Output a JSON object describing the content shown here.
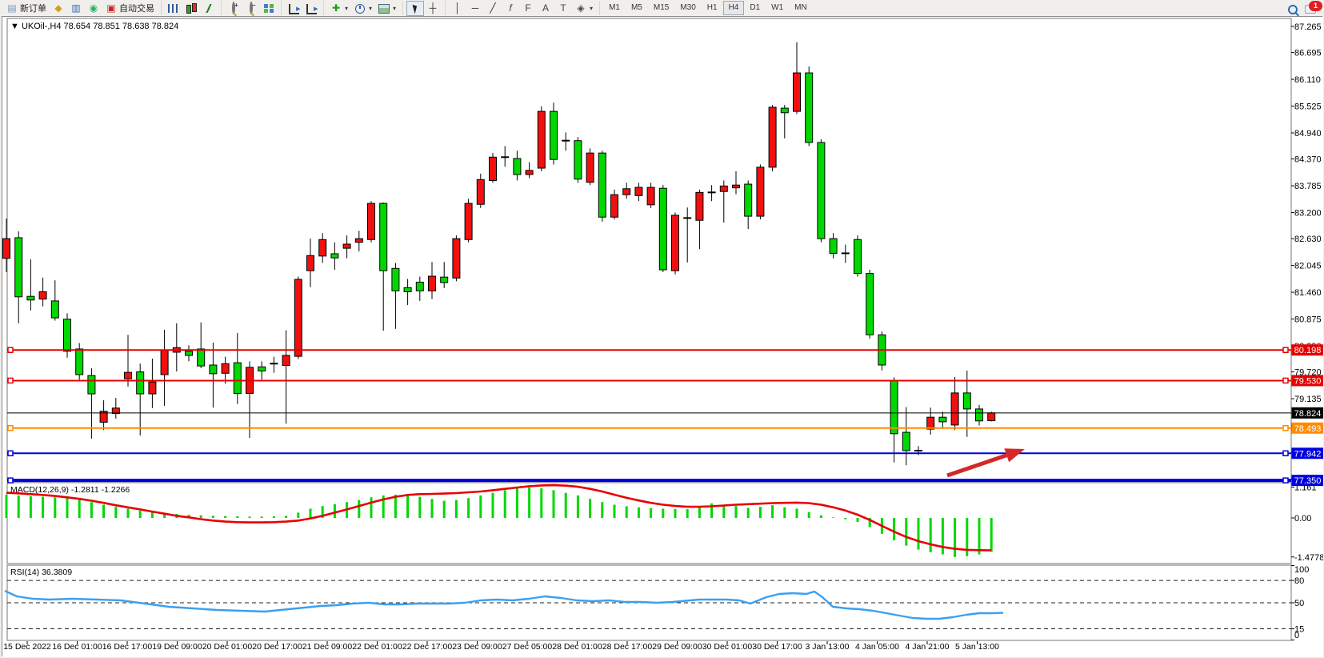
{
  "toolbar": {
    "new_order_label": "新订单",
    "autotrading_label": "自动交易",
    "groups": [
      {
        "items": [
          {
            "name": "new-order-button",
            "icon": "doc",
            "label_key": "new_order_label"
          },
          {
            "name": "chart-wizard-icon",
            "icon": "gold"
          },
          {
            "name": "market-watch-icon",
            "icon": "monitor"
          },
          {
            "name": "signals-icon",
            "icon": "signal"
          },
          {
            "name": "autotrading-button",
            "icon": "autotrade",
            "label_key": "autotrading_label"
          }
        ]
      },
      {
        "items": [
          {
            "name": "bar-chart-button",
            "icon": "bars"
          },
          {
            "name": "candlestick-chart-button",
            "icon": "candles"
          },
          {
            "name": "line-chart-button",
            "icon": "line"
          }
        ]
      },
      {
        "items": [
          {
            "name": "zoom-in-button",
            "icon": "zoom-in"
          },
          {
            "name": "zoom-out-button",
            "icon": "zoom-out"
          },
          {
            "name": "tile-windows-button",
            "icon": "tiles"
          }
        ]
      },
      {
        "items": [
          {
            "name": "auto-scroll-button",
            "icon": "axis"
          },
          {
            "name": "chart-shift-button",
            "icon": "axis"
          }
        ]
      },
      {
        "items": [
          {
            "name": "indicators-button",
            "icon": "plusdoc",
            "caret": true
          },
          {
            "name": "periods-button",
            "icon": "clock",
            "caret": true
          },
          {
            "name": "templates-button",
            "icon": "tpl",
            "caret": true
          }
        ]
      },
      {
        "items": [
          {
            "name": "cursor-button",
            "icon": "cursor",
            "active": true
          },
          {
            "name": "crosshair-button",
            "icon": "crosshair"
          }
        ]
      },
      {
        "items": [
          {
            "name": "vertical-line-button",
            "icon": "vline"
          },
          {
            "name": "horizontal-line-button",
            "icon": "hline"
          },
          {
            "name": "trendline-button",
            "icon": "tline"
          },
          {
            "name": "fibonacci-button",
            "icon": "fibo"
          },
          {
            "name": "fibo-fan-button",
            "icon": "fibo2"
          },
          {
            "name": "text-button",
            "icon": "textA"
          },
          {
            "name": "text-label-button",
            "icon": "textT"
          },
          {
            "name": "arrows-button",
            "icon": "arrows",
            "caret": true
          }
        ]
      }
    ],
    "timeframes": [
      "M1",
      "M5",
      "M15",
      "M30",
      "H1",
      "H4",
      "D1",
      "W1",
      "MN"
    ],
    "active_timeframe": "H4",
    "badge_count": "1"
  },
  "window": {
    "title": "UKOil-,H4",
    "ohlc_text": "78.654 78.851 78.638 78.824"
  },
  "price_axis": {
    "ticks": [
      87.265,
      86.695,
      86.11,
      85.525,
      84.94,
      84.37,
      83.785,
      83.2,
      82.63,
      82.045,
      81.46,
      80.875,
      80.29,
      79.72,
      79.135,
      78.55,
      77.965,
      77.38
    ]
  },
  "levels": [
    {
      "name": "resistance-line-1",
      "value": 80.198,
      "label": "80.198",
      "color": "#e80000",
      "width": 2,
      "badge": "#e80000"
    },
    {
      "name": "resistance-line-2",
      "value": 79.53,
      "label": "79.530",
      "color": "#e80000",
      "width": 2,
      "badge": "#e80000"
    },
    {
      "name": "current-price-line",
      "value": 78.824,
      "label": "78.824",
      "color": "#000000",
      "width": 1,
      "badge": "#000000"
    },
    {
      "name": "support-line-orange",
      "value": 78.493,
      "label": "78.493",
      "color": "#ff8c00",
      "width": 2,
      "badge": "#ff8c00"
    },
    {
      "name": "support-line-blue-1",
      "value": 77.942,
      "label": "77.942",
      "color": "#0000dd",
      "width": 2,
      "badge": "#0000dd"
    },
    {
      "name": "support-line-blue-2",
      "value": 77.35,
      "label": "77.350",
      "color": "#0000dd",
      "width": 4,
      "badge": "#0000dd"
    }
  ],
  "time_axis": {
    "labels": [
      "15 Dec 2022",
      "16 Dec 01:00",
      "16 Dec 17:00",
      "19 Dec 09:00",
      "20 Dec 01:00",
      "20 Dec 17:00",
      "21 Dec 09:00",
      "22 Dec 01:00",
      "22 Dec 17:00",
      "23 Dec 09:00",
      "27 Dec 05:00",
      "28 Dec 01:00",
      "28 Dec 17:00",
      "29 Dec 09:00",
      "30 Dec 01:00",
      "30 Dec 17:00",
      "3 Jan 13:00",
      "4 Jan 05:00",
      "4 Jan 21:00",
      "5 Jan 13:00"
    ]
  },
  "chart_data": {
    "type": "candlestick",
    "symbol": "UKOil-",
    "timeframe": "H4",
    "current_bar": {
      "open": 78.654,
      "high": 78.851,
      "low": 78.638,
      "close": 78.824
    },
    "up_color": "#f01010",
    "down_color": "#00d800",
    "note": "u = bullish (red, Chinese convention), d = bearish (green), j = doji. Fields: dir, bodyHigh, bodyLow, high, low",
    "ylim": [
      77.1,
      87.45
    ],
    "candles": [
      [
        "u",
        82.63,
        82.2,
        83.07,
        81.9
      ],
      [
        "d",
        82.65,
        81.36,
        82.79,
        80.78
      ],
      [
        "d",
        81.37,
        81.29,
        82.18,
        81.06
      ],
      [
        "u",
        81.47,
        81.31,
        81.78,
        81.15
      ],
      [
        "d",
        81.27,
        80.9,
        81.72,
        80.84
      ],
      [
        "d",
        80.87,
        80.17,
        81.0,
        80.03
      ],
      [
        "d",
        80.22,
        79.66,
        80.35,
        79.55
      ],
      [
        "d",
        79.64,
        79.24,
        79.8,
        78.26
      ],
      [
        "u",
        78.86,
        78.62,
        79.1,
        78.45
      ],
      [
        "u",
        78.93,
        78.81,
        79.15,
        78.7
      ],
      [
        "u",
        79.71,
        79.57,
        80.53,
        79.4
      ],
      [
        "d",
        79.72,
        79.24,
        79.9,
        78.33
      ],
      [
        "u",
        79.5,
        79.24,
        80.01,
        78.93
      ],
      [
        "u",
        80.2,
        79.66,
        80.64,
        78.98
      ],
      [
        "u",
        80.25,
        80.15,
        80.78,
        79.73
      ],
      [
        "d",
        80.17,
        80.08,
        80.3,
        79.95
      ],
      [
        "d",
        80.22,
        79.85,
        80.8,
        79.8
      ],
      [
        "d",
        79.87,
        79.68,
        80.36,
        78.94
      ],
      [
        "u",
        79.9,
        79.69,
        80.05,
        79.46
      ],
      [
        "d",
        79.92,
        79.25,
        80.57,
        79.02
      ],
      [
        "u",
        79.82,
        79.25,
        79.95,
        78.28
      ],
      [
        "d",
        79.83,
        79.74,
        79.95,
        79.55
      ],
      [
        "j",
        79.9,
        79.9,
        80.05,
        79.7
      ],
      [
        "u",
        80.08,
        79.86,
        80.63,
        78.59
      ],
      [
        "u",
        81.74,
        80.06,
        81.8,
        80.0
      ],
      [
        "u",
        82.26,
        81.93,
        82.63,
        81.57
      ],
      [
        "u",
        82.61,
        82.25,
        82.75,
        82.1
      ],
      [
        "d",
        82.3,
        82.21,
        82.55,
        81.95
      ],
      [
        "u",
        82.51,
        82.42,
        82.7,
        82.2
      ],
      [
        "u",
        82.63,
        82.55,
        82.8,
        82.35
      ],
      [
        "u",
        83.4,
        82.61,
        83.45,
        82.55
      ],
      [
        "d",
        83.4,
        81.93,
        83.42,
        80.62
      ],
      [
        "d",
        81.98,
        81.49,
        82.1,
        80.66
      ],
      [
        "d",
        81.56,
        81.47,
        81.75,
        81.18
      ],
      [
        "d",
        81.68,
        81.49,
        81.8,
        81.27
      ],
      [
        "u",
        81.81,
        81.49,
        82.12,
        81.31
      ],
      [
        "d",
        81.79,
        81.67,
        82.12,
        81.55
      ],
      [
        "u",
        82.63,
        81.77,
        82.7,
        81.7
      ],
      [
        "u",
        83.4,
        82.61,
        83.5,
        82.55
      ],
      [
        "u",
        83.92,
        83.38,
        84.05,
        83.3
      ],
      [
        "u",
        84.41,
        83.9,
        84.5,
        83.85
      ],
      [
        "j",
        84.41,
        84.41,
        84.65,
        84.2
      ],
      [
        "d",
        84.38,
        84.03,
        84.55,
        83.9
      ],
      [
        "u",
        84.12,
        84.03,
        84.3,
        83.95
      ],
      [
        "u",
        85.41,
        84.17,
        85.52,
        84.1
      ],
      [
        "d",
        85.41,
        84.36,
        85.6,
        84.25
      ],
      [
        "j",
        84.77,
        84.77,
        84.95,
        84.55
      ],
      [
        "d",
        84.77,
        83.93,
        84.85,
        83.85
      ],
      [
        "u",
        84.5,
        83.86,
        84.6,
        83.8
      ],
      [
        "d",
        84.5,
        83.1,
        84.55,
        83.0
      ],
      [
        "u",
        83.59,
        83.1,
        83.7,
        83.05
      ],
      [
        "u",
        83.72,
        83.59,
        83.85,
        83.5
      ],
      [
        "u",
        83.75,
        83.57,
        83.85,
        83.45
      ],
      [
        "u",
        83.75,
        83.37,
        83.85,
        83.3
      ],
      [
        "d",
        83.73,
        81.95,
        83.8,
        81.9
      ],
      [
        "u",
        83.14,
        81.93,
        83.2,
        81.85
      ],
      [
        "j",
        83.08,
        83.03,
        83.31,
        82.11
      ],
      [
        "u",
        83.64,
        83.03,
        83.7,
        82.4
      ],
      [
        "j",
        83.64,
        83.64,
        83.8,
        83.45
      ],
      [
        "u",
        83.78,
        83.66,
        83.9,
        82.98
      ],
      [
        "u",
        83.8,
        83.74,
        84.1,
        83.6
      ],
      [
        "d",
        83.82,
        83.12,
        83.9,
        82.84
      ],
      [
        "u",
        84.19,
        83.12,
        84.25,
        83.05
      ],
      [
        "u",
        85.5,
        84.19,
        85.55,
        84.1
      ],
      [
        "d",
        85.48,
        85.38,
        85.55,
        84.82
      ],
      [
        "u",
        86.25,
        85.41,
        86.92,
        85.35
      ],
      [
        "d",
        86.25,
        84.73,
        86.39,
        84.65
      ],
      [
        "d",
        84.73,
        82.63,
        84.8,
        82.55
      ],
      [
        "d",
        82.63,
        82.31,
        82.75,
        82.2
      ],
      [
        "j",
        82.31,
        82.31,
        82.5,
        82.1
      ],
      [
        "d",
        82.61,
        81.87,
        82.7,
        81.8
      ],
      [
        "d",
        81.87,
        80.53,
        81.95,
        80.45
      ],
      [
        "d",
        80.53,
        79.87,
        80.6,
        79.75
      ],
      [
        "d",
        79.52,
        78.37,
        79.6,
        77.74
      ],
      [
        "d",
        78.4,
        78.0,
        78.95,
        77.68
      ],
      [
        "j",
        78.0,
        78.0,
        78.1,
        77.9
      ],
      [
        "u",
        78.73,
        78.47,
        78.94,
        78.35
      ],
      [
        "d",
        78.73,
        78.63,
        78.85,
        78.5
      ],
      [
        "u",
        79.26,
        78.56,
        79.61,
        78.45
      ],
      [
        "d",
        79.26,
        78.91,
        79.75,
        78.3
      ],
      [
        "d",
        78.91,
        78.65,
        79.0,
        78.55
      ],
      [
        "u",
        78.824,
        78.654,
        78.851,
        78.638
      ]
    ],
    "macd": {
      "label_name": "MACD(12,26,9)",
      "label_values": "-1.2811 -1.2266",
      "axis_ticks": [
        "1.161",
        "0.00",
        "-1.4778"
      ],
      "axis_values": [
        1.161,
        0.0,
        -1.4778
      ],
      "histogram_color": "#00d800",
      "signal_color": "#e80000",
      "histogram": [
        0.88,
        0.85,
        0.82,
        0.8,
        0.78,
        0.75,
        0.68,
        0.6,
        0.5,
        0.42,
        0.35,
        0.28,
        0.22,
        0.18,
        0.15,
        0.12,
        0.1,
        0.08,
        0.07,
        0.06,
        0.05,
        0.05,
        0.06,
        0.08,
        0.2,
        0.35,
        0.45,
        0.52,
        0.6,
        0.68,
        0.78,
        0.85,
        0.88,
        0.85,
        0.8,
        0.72,
        0.65,
        0.68,
        0.75,
        0.85,
        0.95,
        1.05,
        1.12,
        1.15,
        1.12,
        1.05,
        0.95,
        0.85,
        0.72,
        0.6,
        0.5,
        0.44,
        0.4,
        0.37,
        0.35,
        0.34,
        0.33,
        0.45,
        0.55,
        0.5,
        0.45,
        0.38,
        0.42,
        0.48,
        0.4,
        0.35,
        0.22,
        0.1,
        0.02,
        -0.05,
        -0.15,
        -0.35,
        -0.6,
        -0.85,
        -1.05,
        -1.2,
        -1.3,
        -1.38,
        -1.4778,
        -1.45,
        -1.38,
        -1.2811
      ],
      "signal": [
        0.95,
        0.93,
        0.9,
        0.87,
        0.83,
        0.78,
        0.72,
        0.65,
        0.57,
        0.48,
        0.4,
        0.32,
        0.24,
        0.16,
        0.08,
        0.02,
        -0.05,
        -0.1,
        -0.14,
        -0.16,
        -0.17,
        -0.17,
        -0.16,
        -0.14,
        -0.1,
        -0.02,
        0.08,
        0.2,
        0.32,
        0.45,
        0.58,
        0.7,
        0.8,
        0.87,
        0.9,
        0.91,
        0.92,
        0.94,
        0.97,
        1.0,
        1.05,
        1.1,
        1.15,
        1.2,
        1.23,
        1.24,
        1.22,
        1.18,
        1.1,
        1.0,
        0.88,
        0.76,
        0.66,
        0.57,
        0.5,
        0.45,
        0.42,
        0.42,
        0.44,
        0.47,
        0.5,
        0.52,
        0.54,
        0.56,
        0.57,
        0.58,
        0.56,
        0.5,
        0.4,
        0.28,
        0.12,
        -0.08,
        -0.3,
        -0.52,
        -0.72,
        -0.88,
        -1.0,
        -1.1,
        -1.17,
        -1.21,
        -1.22,
        -1.2266
      ]
    },
    "rsi": {
      "label_name": "RSI(14)",
      "label_value": "36.3809",
      "axis_ticks": [
        "100",
        "80",
        "50",
        "15",
        "0"
      ],
      "axis_values": [
        100,
        80,
        50,
        15,
        0
      ],
      "dashed_levels": [
        80,
        50,
        15
      ],
      "line_color": "#3aa0f0",
      "points": [
        [
          5,
          66
        ],
        [
          20,
          58.6
        ],
        [
          40,
          55.4
        ],
        [
          60,
          54.3
        ],
        [
          90,
          55.4
        ],
        [
          120,
          54.3
        ],
        [
          150,
          53.2
        ],
        [
          180,
          48.9
        ],
        [
          210,
          44.6
        ],
        [
          240,
          42.5
        ],
        [
          270,
          40.3
        ],
        [
          300,
          39.2
        ],
        [
          330,
          38.2
        ],
        [
          360,
          41.4
        ],
        [
          380,
          43.5
        ],
        [
          400,
          45.7
        ],
        [
          420,
          46.8
        ],
        [
          440,
          48.9
        ],
        [
          460,
          50
        ],
        [
          480,
          47.8
        ],
        [
          500,
          47.8
        ],
        [
          520,
          48.9
        ],
        [
          540,
          48.9
        ],
        [
          560,
          48.9
        ],
        [
          580,
          50
        ],
        [
          600,
          53.2
        ],
        [
          620,
          54.3
        ],
        [
          640,
          53.2
        ],
        [
          660,
          55.4
        ],
        [
          680,
          58.6
        ],
        [
          700,
          56.5
        ],
        [
          720,
          53.2
        ],
        [
          740,
          52.2
        ],
        [
          760,
          53.2
        ],
        [
          780,
          51.1
        ],
        [
          800,
          51.1
        ],
        [
          820,
          50
        ],
        [
          840,
          51.1
        ],
        [
          873,
          54.3
        ],
        [
          907,
          54.3
        ],
        [
          923,
          53.2
        ],
        [
          937,
          48.9
        ],
        [
          957,
          57.5
        ],
        [
          973,
          61.8
        ],
        [
          990,
          62.9
        ],
        [
          1007,
          61.8
        ],
        [
          1017,
          65.1
        ],
        [
          1027,
          57.5
        ],
        [
          1040,
          44.6
        ],
        [
          1057,
          42.5
        ],
        [
          1073,
          41.4
        ],
        [
          1090,
          39.2
        ],
        [
          1107,
          36
        ],
        [
          1123,
          32.8
        ],
        [
          1140,
          29.6
        ],
        [
          1157,
          28.5
        ],
        [
          1173,
          28.5
        ],
        [
          1190,
          30.6
        ],
        [
          1207,
          33.9
        ],
        [
          1223,
          36
        ],
        [
          1240,
          36
        ],
        [
          1253,
          36.4
        ]
      ]
    }
  },
  "annotation": {
    "arrow_color": "#d42828",
    "arrow_tail": [
      1183,
      593
    ],
    "arrow_tip": [
      1280,
      560
    ]
  }
}
